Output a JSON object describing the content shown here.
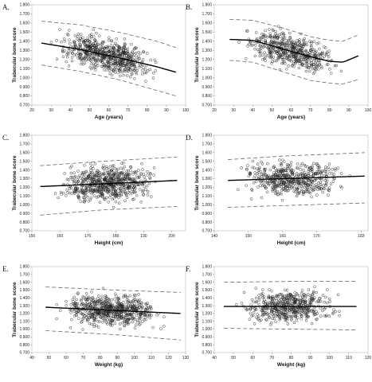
{
  "chart_data": [
    {
      "panel_label": "A.",
      "type": "scatter",
      "xlabel": "Age (years)",
      "ylabel": "Trabecular bone score",
      "xlim": [
        20,
        100
      ],
      "ylim": [
        0.7,
        1.8
      ],
      "x_ticks": [
        "20",
        "30",
        "40",
        "50",
        "60",
        "70",
        "80",
        "90",
        "100"
      ],
      "y_ticks": [
        "0.700",
        "0.800",
        "0.900",
        "1.000",
        "1.100",
        "1.200",
        "1.300",
        "1.400",
        "1.500",
        "1.600",
        "1.700",
        "1.800"
      ],
      "point_cloud": {
        "x_range": [
          25,
          93
        ],
        "n_points": 650,
        "spread": 0.12
      },
      "fit_line": [
        [
          25,
          1.38
        ],
        [
          45,
          1.31
        ],
        [
          65,
          1.22
        ],
        [
          85,
          1.12
        ],
        [
          95,
          1.06
        ]
      ],
      "band_upper": [
        [
          25,
          1.62
        ],
        [
          45,
          1.58
        ],
        [
          65,
          1.5
        ],
        [
          85,
          1.4
        ],
        [
          95,
          1.33
        ]
      ],
      "band_lower": [
        [
          25,
          1.14
        ],
        [
          45,
          1.07
        ],
        [
          65,
          0.98
        ],
        [
          85,
          0.86
        ],
        [
          95,
          0.8
        ]
      ]
    },
    {
      "panel_label": "B.",
      "type": "scatter",
      "xlabel": "Age (years)",
      "ylabel": "Trabecular bone score",
      "xlim": [
        20,
        100
      ],
      "ylim": [
        0.7,
        1.8
      ],
      "x_ticks": [
        "20",
        "30",
        "40",
        "50",
        "60",
        "70",
        "80",
        "90",
        "100"
      ],
      "y_ticks": [
        "0.700",
        "0.800",
        "0.900",
        "1.000",
        "1.100",
        "1.200",
        "1.300",
        "1.400",
        "1.500",
        "1.600",
        "1.700",
        "1.800"
      ],
      "point_cloud": {
        "x_range": [
          28,
          92
        ],
        "n_points": 520,
        "spread": 0.12
      },
      "fit_line": [
        [
          28,
          1.42
        ],
        [
          40,
          1.41
        ],
        [
          55,
          1.32
        ],
        [
          70,
          1.23
        ],
        [
          80,
          1.18
        ],
        [
          87,
          1.17
        ],
        [
          95,
          1.24
        ]
      ],
      "band_upper": [
        [
          28,
          1.64
        ],
        [
          40,
          1.63
        ],
        [
          55,
          1.55
        ],
        [
          70,
          1.45
        ],
        [
          80,
          1.41
        ],
        [
          87,
          1.4
        ],
        [
          95,
          1.47
        ]
      ],
      "band_lower": [
        [
          28,
          1.19
        ],
        [
          40,
          1.17
        ],
        [
          55,
          1.07
        ],
        [
          70,
          0.97
        ],
        [
          80,
          0.94
        ],
        [
          87,
          0.93
        ],
        [
          95,
          0.98
        ]
      ]
    },
    {
      "panel_label": "C.",
      "type": "scatter",
      "xlabel": "Height (cm)",
      "ylabel": "Trabecular bone score",
      "xlim": [
        150,
        205
      ],
      "ylim": [
        0.7,
        1.8
      ],
      "x_ticks": [
        "150",
        "160",
        "170",
        "180",
        "190",
        "200"
      ],
      "y_ticks": [
        "0.700",
        "0.800",
        "0.900",
        "1.000",
        "1.100",
        "1.200",
        "1.300",
        "1.400",
        "1.500",
        "1.600",
        "1.700",
        "1.800"
      ],
      "point_cloud": {
        "x_range": [
          155,
          200
        ],
        "n_points": 650,
        "spread": 0.13
      },
      "fit_line": [
        [
          153,
          1.21
        ],
        [
          175,
          1.24
        ],
        [
          202,
          1.28
        ]
      ],
      "band_upper": [
        [
          153,
          1.45
        ],
        [
          175,
          1.5
        ],
        [
          202,
          1.55
        ]
      ],
      "band_lower": [
        [
          153,
          0.88
        ],
        [
          175,
          0.94
        ],
        [
          202,
          0.98
        ]
      ]
    },
    {
      "panel_label": "D.",
      "type": "scatter",
      "xlabel": "Height (cm)",
      "ylabel": "Trabecular bone score",
      "xlim": [
        140,
        185
      ],
      "ylim": [
        0.7,
        1.8
      ],
      "x_ticks": [
        "140",
        "150",
        "160",
        "170",
        "183"
      ],
      "y_ticks": [
        "0.700",
        "0.800",
        "0.900",
        "1.000",
        "1.100",
        "1.200",
        "1.300",
        "1.400",
        "1.500",
        "1.600",
        "1.700",
        "1.800"
      ],
      "point_cloud": {
        "x_range": [
          144,
          182
        ],
        "n_points": 520,
        "spread": 0.13
      },
      "fit_line": [
        [
          144,
          1.28
        ],
        [
          160,
          1.3
        ],
        [
          184,
          1.33
        ]
      ],
      "band_upper": [
        [
          144,
          1.52
        ],
        [
          160,
          1.56
        ],
        [
          184,
          1.6
        ]
      ],
      "band_lower": [
        [
          144,
          0.97
        ],
        [
          160,
          0.99
        ],
        [
          184,
          1.02
        ]
      ]
    },
    {
      "panel_label": "E.",
      "type": "scatter",
      "xlabel": "Weight (kg)",
      "ylabel": "Trabecular bone score",
      "xlim": [
        40,
        130
      ],
      "ylim": [
        0.7,
        1.8
      ],
      "x_ticks": [
        "40",
        "50",
        "60",
        "70",
        "80",
        "90",
        "100",
        "110",
        "120",
        "130"
      ],
      "y_ticks": [
        "0.700",
        "0.800",
        "0.900",
        "1.000",
        "1.100",
        "1.200",
        "1.300",
        "1.400",
        "1.500",
        "1.600",
        "1.700",
        "1.800"
      ],
      "point_cloud": {
        "x_range": [
          48,
          125
        ],
        "n_points": 650,
        "spread": 0.13
      },
      "fit_line": [
        [
          48,
          1.28
        ],
        [
          88,
          1.24
        ],
        [
          127,
          1.2
        ]
      ],
      "band_upper": [
        [
          48,
          1.54
        ],
        [
          88,
          1.5
        ],
        [
          127,
          1.47
        ]
      ],
      "band_lower": [
        [
          48,
          0.98
        ],
        [
          88,
          0.93
        ],
        [
          127,
          0.86
        ]
      ]
    },
    {
      "panel_label": "F.",
      "type": "scatter",
      "xlabel": "Weight (kg)",
      "ylabel": "Trabecular bone score",
      "xlim": [
        40,
        120
      ],
      "ylim": [
        0.7,
        1.8
      ],
      "x_ticks": [
        "40",
        "50",
        "60",
        "70",
        "80",
        "90",
        "100",
        "110",
        "120"
      ],
      "y_ticks": [
        "0.700",
        "0.800",
        "0.900",
        "1.000",
        "1.100",
        "1.200",
        "1.300",
        "1.400",
        "1.500",
        "1.600",
        "1.700",
        "1.800"
      ],
      "point_cloud": {
        "x_range": [
          45,
          112
        ],
        "n_points": 520,
        "spread": 0.13
      },
      "fit_line": [
        [
          45,
          1.29
        ],
        [
          80,
          1.29
        ],
        [
          114,
          1.29
        ]
      ],
      "band_upper": [
        [
          45,
          1.6
        ],
        [
          80,
          1.61
        ],
        [
          114,
          1.61
        ]
      ],
      "band_lower": [
        [
          45,
          1.01
        ],
        [
          80,
          1.0
        ],
        [
          114,
          0.99
        ]
      ]
    }
  ]
}
